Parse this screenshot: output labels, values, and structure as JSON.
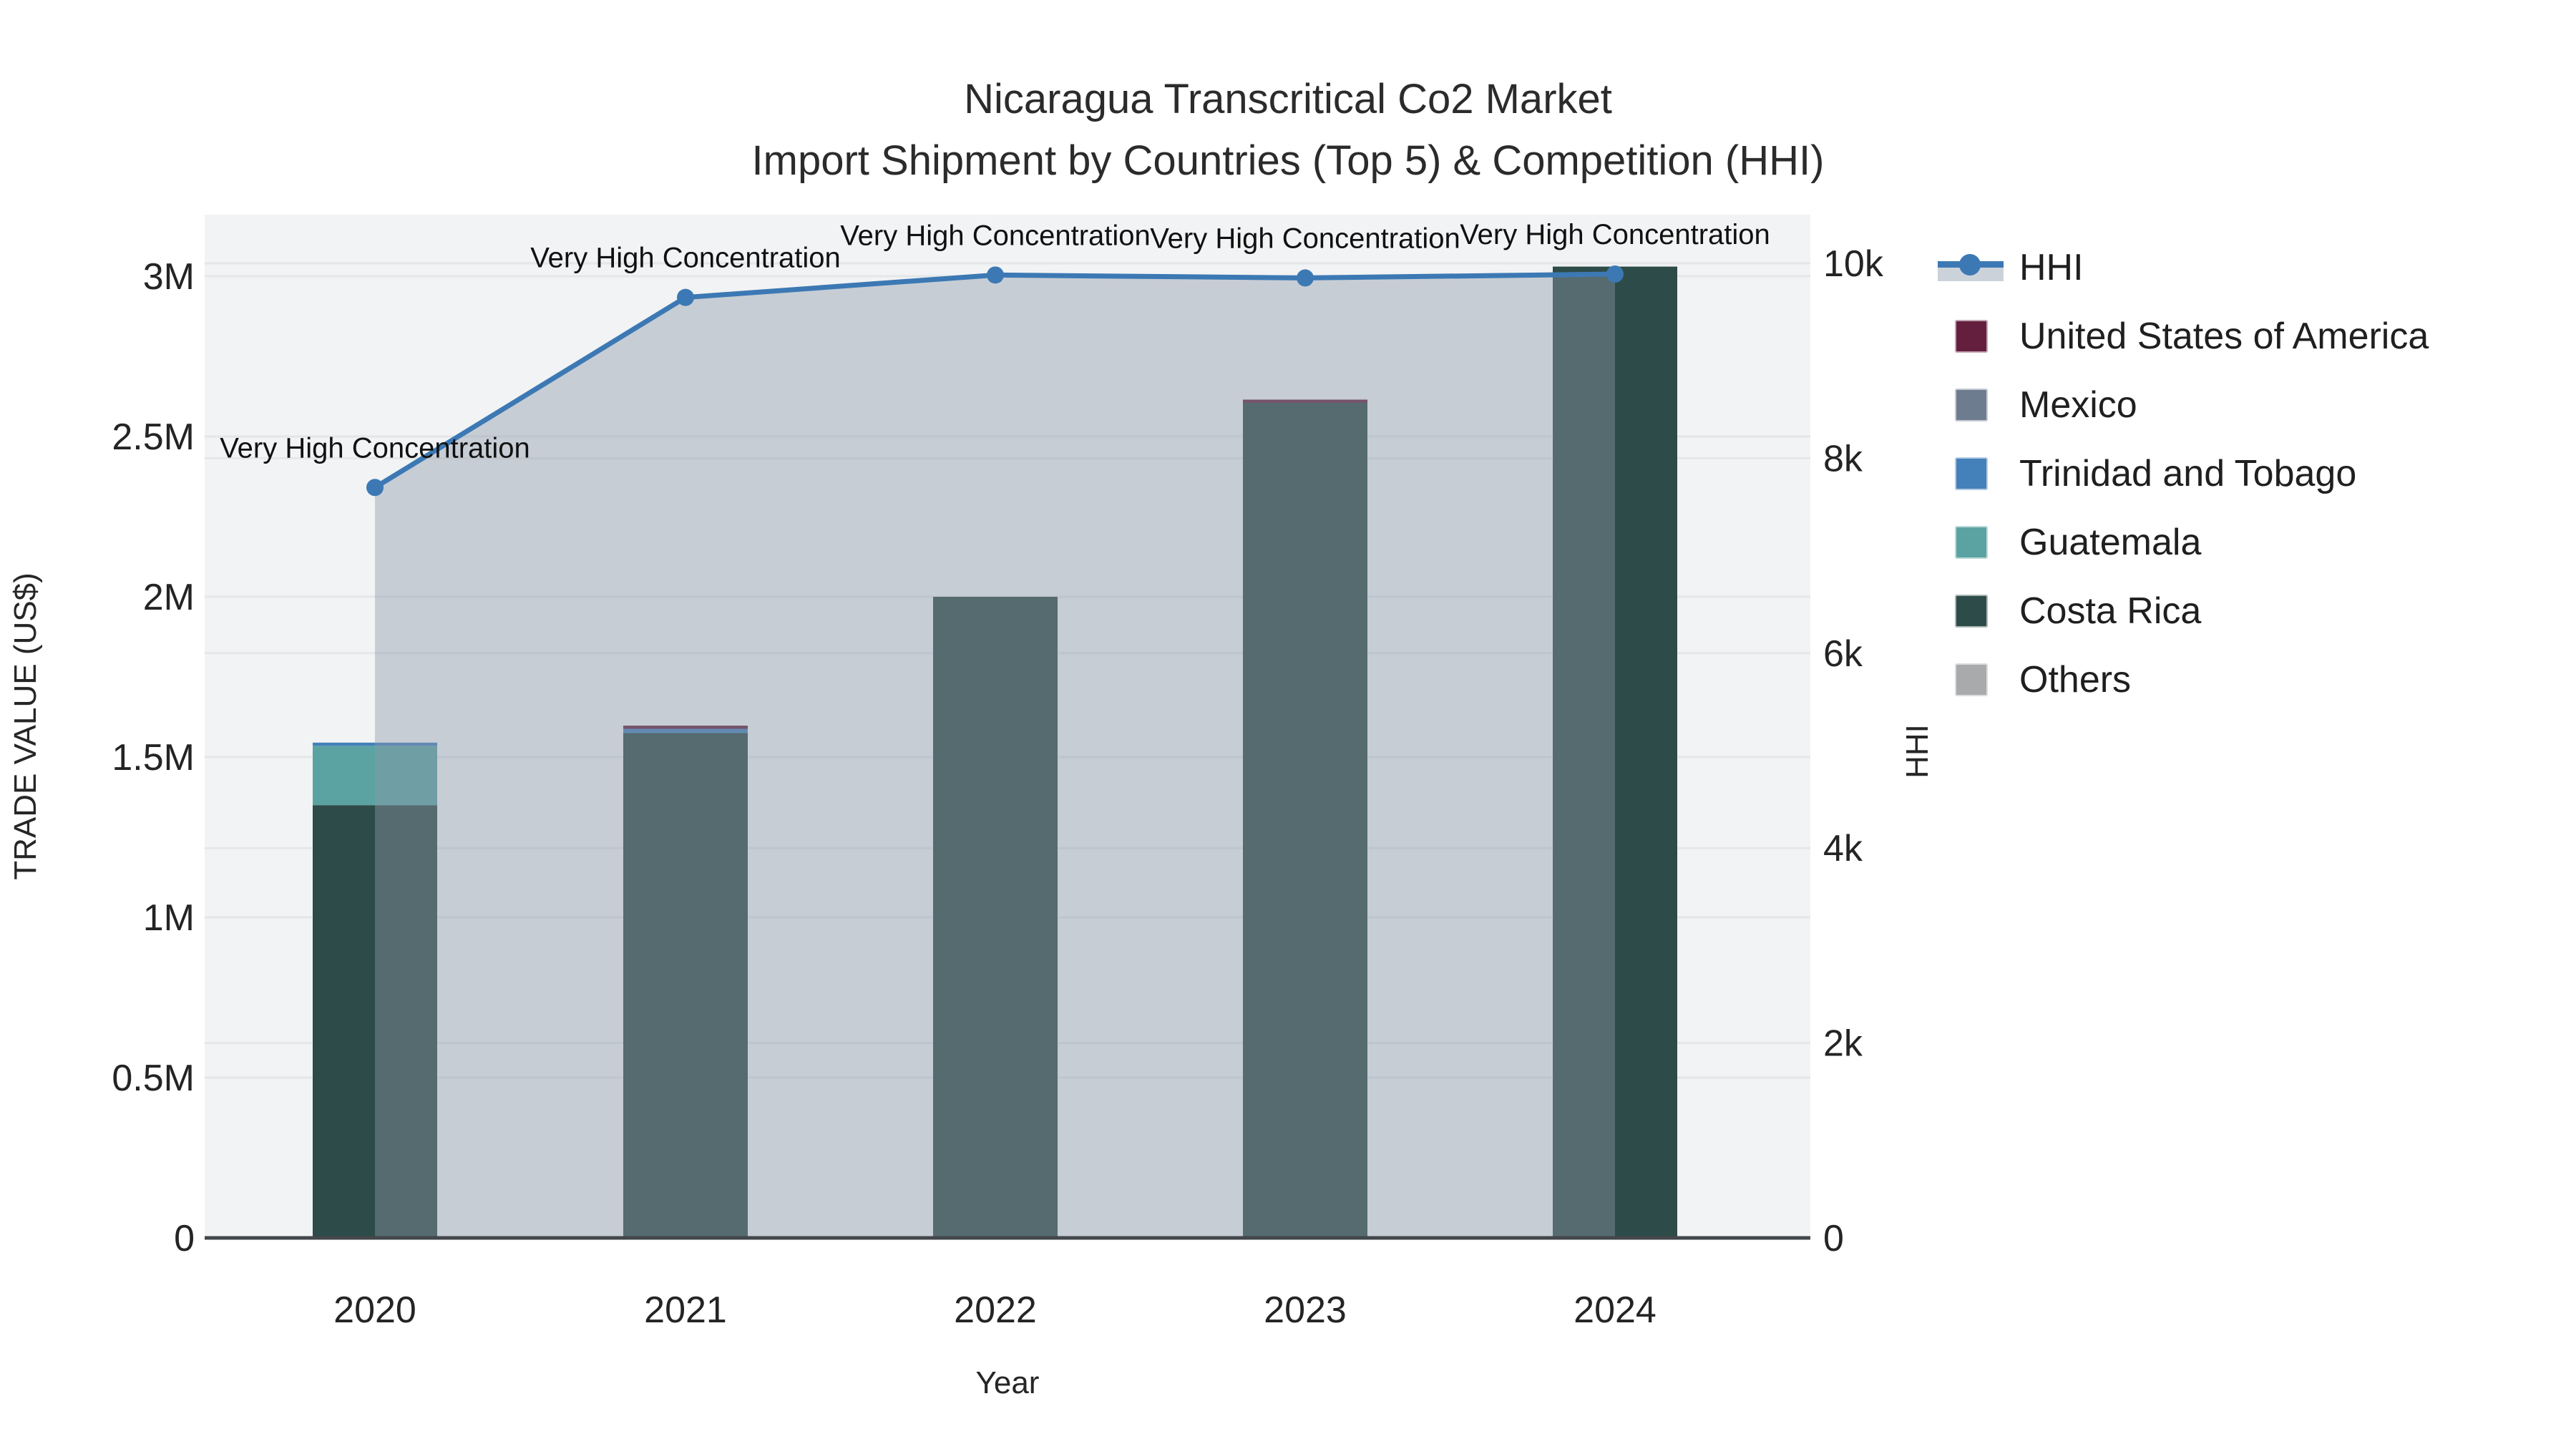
{
  "title": {
    "line1": "Nicaragua Transcritical Co2 Market",
    "line2": "Import Shipment by Countries (Top 5) & Competition (HHI)"
  },
  "axes": {
    "x": {
      "title": "Year",
      "categories": [
        "2020",
        "2021",
        "2022",
        "2023",
        "2024"
      ]
    },
    "y_left": {
      "title": "TRADE VALUE (US$)",
      "range": [
        0,
        3000000
      ],
      "ticks": [
        {
          "label": "0",
          "value": 0
        },
        {
          "label": "0.5M",
          "value": 500000
        },
        {
          "label": "1M",
          "value": 1000000
        },
        {
          "label": "1.5M",
          "value": 1500000
        },
        {
          "label": "2M",
          "value": 2000000
        },
        {
          "label": "2.5M",
          "value": 2500000
        },
        {
          "label": "3M",
          "value": 3000000
        }
      ]
    },
    "y_right": {
      "title": "HHI",
      "range": [
        0,
        10000
      ],
      "ticks": [
        {
          "label": "0",
          "value": 0
        },
        {
          "label": "2k",
          "value": 2000
        },
        {
          "label": "4k",
          "value": 4000
        },
        {
          "label": "6k",
          "value": 6000
        },
        {
          "label": "8k",
          "value": 8000
        },
        {
          "label": "10k",
          "value": 10000
        }
      ]
    }
  },
  "legend": {
    "items": [
      {
        "label": "HHI",
        "type": "line",
        "color": "#3c79b4"
      },
      {
        "label": "United States of America",
        "type": "square",
        "color": "#641f3e"
      },
      {
        "label": "Mexico",
        "type": "square",
        "color": "#6e7c8f"
      },
      {
        "label": "Trinidad and Tobago",
        "type": "square",
        "color": "#4480ba"
      },
      {
        "label": "Guatemala",
        "type": "square",
        "color": "#5ba3a3"
      },
      {
        "label": "Costa Rica",
        "type": "square",
        "color": "#2d4b48"
      },
      {
        "label": "Others",
        "type": "square",
        "color": "#a9aaac"
      }
    ]
  },
  "chart_data": {
    "type": "bar",
    "subtype": "stacked-bars-with-line",
    "title": "Nicaragua Transcritical Co2 Market - Import Shipment by Countries (Top 5) & Competition (HHI)",
    "xlabel": "Year",
    "ylabel": "TRADE VALUE (US$)",
    "y2label": "HHI",
    "ylim": [
      0,
      3000000
    ],
    "y2lim": [
      0,
      10000
    ],
    "grid": true,
    "legend_position": "right",
    "categories": [
      "2020",
      "2021",
      "2022",
      "2023",
      "2024"
    ],
    "bar_value_unit": "US$",
    "series": [
      {
        "name": "United States of America",
        "color": "#641f3e",
        "values": [
          0,
          10000,
          0,
          10000,
          0
        ]
      },
      {
        "name": "Mexico",
        "color": "#6e7c8f",
        "values": [
          0,
          0,
          0,
          0,
          0
        ]
      },
      {
        "name": "Trinidad and Tobago",
        "color": "#4480ba",
        "values": [
          10000,
          13000,
          0,
          0,
          0
        ]
      },
      {
        "name": "Guatemala",
        "color": "#5ba3a3",
        "values": [
          185000,
          0,
          0,
          0,
          0
        ]
      },
      {
        "name": "Costa Rica",
        "color": "#2d4b48",
        "values": [
          1350000,
          1575000,
          2000000,
          2605000,
          3030000
        ]
      },
      {
        "name": "Others",
        "color": "#a9aaac",
        "values": [
          0,
          0,
          0,
          0,
          0
        ]
      }
    ],
    "stack_order": "reversed-legend-order-bottom-to-top",
    "line_series": {
      "name": "HHI",
      "axis": "right",
      "color": "#3c79b4",
      "area_fill_color": "rgba(140,152,170,0.42)",
      "values": [
        7700,
        9650,
        9880,
        9850,
        9890
      ]
    },
    "annotations": [
      {
        "x": "2020",
        "text": "Very High Concentration"
      },
      {
        "x": "2021",
        "text": "Very High Concentration"
      },
      {
        "x": "2022",
        "text": "Very High Concentration"
      },
      {
        "x": "2023",
        "text": "Very High Concentration"
      },
      {
        "x": "2024",
        "text": "Very High Concentration"
      }
    ]
  },
  "colors": {
    "plot_bg": "#f2f3f4",
    "gridline": "#e4e6e9",
    "axis_line": "#43474b",
    "tick_text": "#242424",
    "annotation_text": "#111111"
  }
}
